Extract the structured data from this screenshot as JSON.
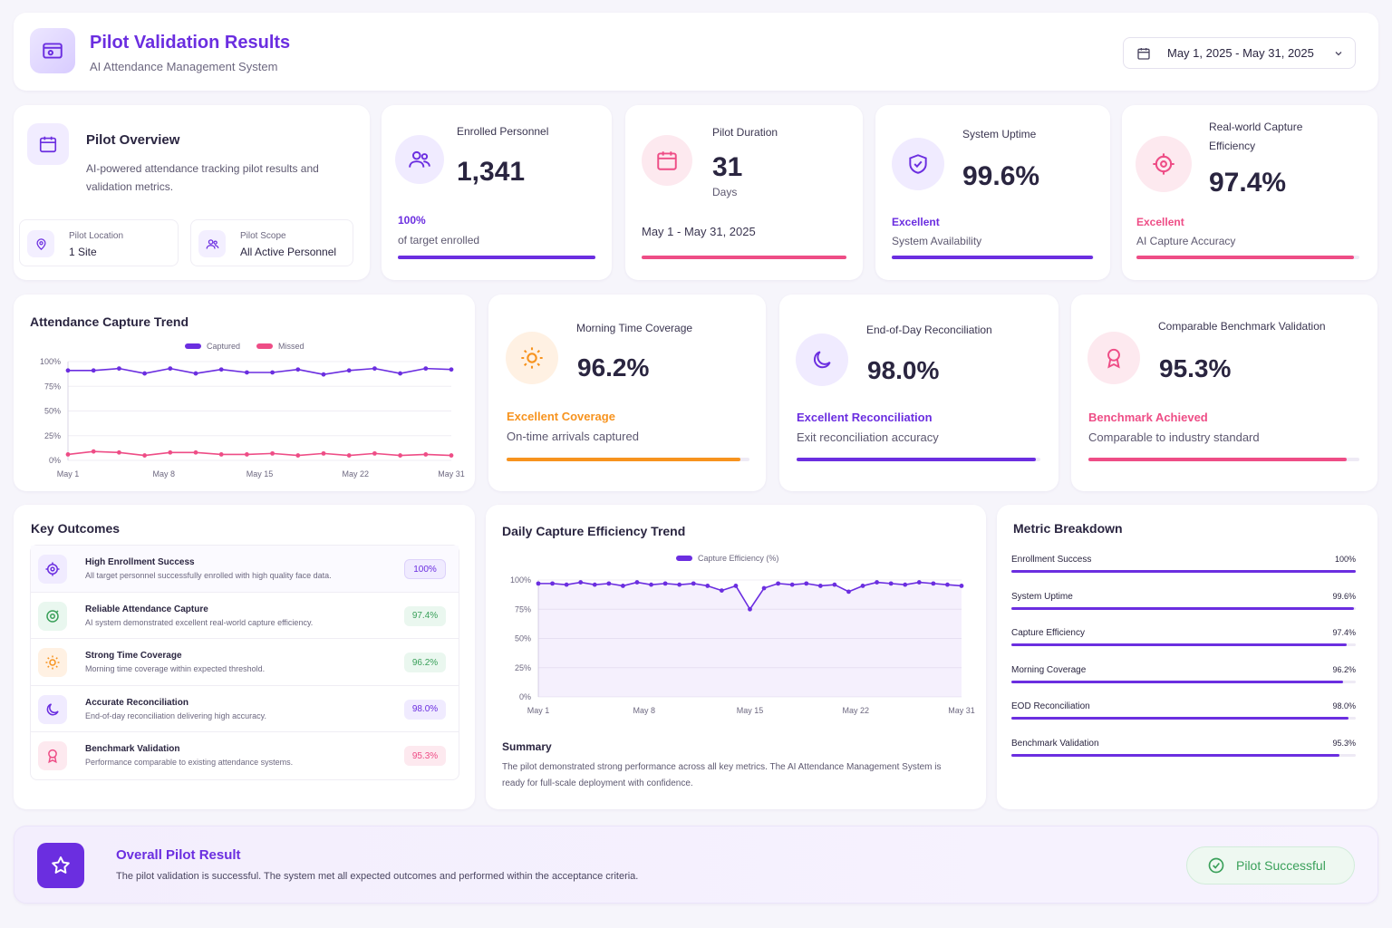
{
  "header": {
    "title": "Pilot Validation Results",
    "subtitle": "AI Attendance Management System",
    "date_range": "May 1, 2025 - May 31, 2025"
  },
  "overview": {
    "title": "Pilot Overview",
    "description": "AI-powered attendance tracking pilot results and validation metrics.",
    "location_label": "Pilot Location",
    "location_value": "1 Site",
    "scope_label": "Pilot Scope",
    "scope_value": "All Active Personnel"
  },
  "kpis": {
    "enrolled": {
      "label": "Enrolled Personnel",
      "value": "1,341",
      "note": "100%",
      "sub": "of target enrolled",
      "progress": 1.0
    },
    "duration": {
      "label": "Pilot Duration",
      "value": "31",
      "unit": "Days",
      "sub": "May 1 - May 31, 2025",
      "progress": 1.0
    },
    "uptime": {
      "label": "System Uptime",
      "value": "99.6%",
      "note": "Excellent",
      "sub": "System Availability",
      "progress": 0.996
    },
    "capture": {
      "label_line1": "Real-world Capture",
      "label_line2": "Efficiency",
      "value": "97.4%",
      "note": "Excellent",
      "sub": "AI Capture Accuracy",
      "progress": 0.974
    }
  },
  "mid_kpis": {
    "morning": {
      "label": "Morning Time Coverage",
      "value": "96.2%",
      "note": "Excellent Coverage",
      "sub": "On-time arrivals captured",
      "progress": 0.962
    },
    "eod": {
      "label": "End-of-Day Reconciliation",
      "value": "98.0%",
      "note": "Excellent Reconciliation",
      "sub": "Exit reconciliation accuracy",
      "progress": 0.98
    },
    "benchmark": {
      "label": "Comparable Benchmark Validation",
      "value": "95.3%",
      "note": "Benchmark Achieved",
      "sub": "Comparable to industry standard",
      "progress": 0.953
    }
  },
  "colors": {
    "purple": "#6b2ee0",
    "pink": "#ee4d86",
    "orange": "#f7931e",
    "green": "#3aa05a"
  },
  "attendance_chart": {
    "title": "Attendance Capture Trend",
    "legend_captured": "Captured",
    "legend_missed": "Missed",
    "y_ticks": [
      "100%",
      "75%",
      "50%",
      "25%",
      "0%"
    ],
    "x_ticks": [
      "May 1",
      "May 8",
      "May 15",
      "May 22",
      "May 31"
    ]
  },
  "efficiency_chart": {
    "title": "Daily Capture Efficiency Trend",
    "legend": "Capture Efficiency (%)",
    "y_ticks": [
      "100%",
      "75%",
      "50%",
      "25%",
      "0%"
    ],
    "x_ticks": [
      "May 1",
      "May 8",
      "May 15",
      "May 22",
      "May 31"
    ]
  },
  "chart_data": [
    {
      "type": "line",
      "x_range": [
        1,
        31
      ],
      "ylim": [
        0,
        100
      ],
      "series": [
        {
          "name": "Captured",
          "color": "#6b2ee0",
          "x": [
            1,
            3,
            5,
            7,
            9,
            11,
            13,
            15,
            17,
            19,
            21,
            23,
            25,
            27,
            29,
            31
          ],
          "values": [
            91,
            91,
            93,
            88,
            93,
            88,
            92,
            89,
            89,
            92,
            87,
            91,
            93,
            88,
            93,
            92
          ]
        },
        {
          "name": "Missed",
          "color": "#ee4d86",
          "x": [
            1,
            3,
            5,
            7,
            9,
            11,
            13,
            15,
            17,
            19,
            21,
            23,
            25,
            27,
            29,
            31
          ],
          "values": [
            6,
            9,
            8,
            5,
            8,
            8,
            6,
            6,
            7,
            5,
            7,
            5,
            7,
            5,
            6,
            5
          ]
        }
      ]
    },
    {
      "type": "area",
      "x_range": [
        1,
        31
      ],
      "ylim": [
        0,
        100
      ],
      "series": [
        {
          "name": "Capture Efficiency (%)",
          "color": "#6b2ee0",
          "x": [
            1,
            2,
            3,
            4,
            5,
            6,
            7,
            8,
            9,
            10,
            11,
            12,
            13,
            14,
            15,
            16,
            17,
            18,
            19,
            20,
            21,
            22,
            23,
            24,
            25,
            26,
            27,
            28,
            29,
            30,
            31
          ],
          "values": [
            97,
            97,
            96,
            98,
            96,
            97,
            95,
            98,
            96,
            97,
            96,
            97,
            95,
            91,
            95,
            75,
            93,
            97,
            96,
            97,
            95,
            96,
            90,
            95,
            98,
            97,
            96,
            98,
            97,
            96,
            95
          ]
        }
      ]
    }
  ],
  "key_outcomes": {
    "title": "Key Outcomes",
    "items": [
      {
        "title": "High Enrollment Success",
        "desc": "All target personnel successfully enrolled with high quality face data.",
        "badge": "100%"
      },
      {
        "title": "Reliable Attendance Capture",
        "desc": "AI system demonstrated excellent real-world capture efficiency.",
        "badge": "97.4%"
      },
      {
        "title": "Strong Time Coverage",
        "desc": "Morning time coverage within expected threshold.",
        "badge": "96.2%"
      },
      {
        "title": "Accurate Reconciliation",
        "desc": "End-of-day reconciliation delivering high accuracy.",
        "badge": "98.0%"
      },
      {
        "title": "Benchmark Validation",
        "desc": "Performance comparable to existing attendance systems.",
        "badge": "95.3%"
      }
    ]
  },
  "summary": {
    "title": "Summary",
    "text": "The pilot demonstrated  strong performance across all key metrics. The AI Attendance Management System is ready for full-scale deployment with confidence."
  },
  "metric_breakdown": {
    "title": "Metric Breakdown",
    "items": [
      {
        "name": "Enrollment Success",
        "value": "100%",
        "fraction": 1.0
      },
      {
        "name": "System Uptime",
        "value": "99.6%",
        "fraction": 0.996
      },
      {
        "name": "Capture Efficiency",
        "value": "97.4%",
        "fraction": 0.974
      },
      {
        "name": "Morning Coverage",
        "value": "96.2%",
        "fraction": 0.962
      },
      {
        "name": "EOD Reconciliation",
        "value": "98.0%",
        "fraction": 0.98
      },
      {
        "name": "Benchmark Validation",
        "value": "95.3%",
        "fraction": 0.953
      }
    ]
  },
  "footer": {
    "title": "Overall Pilot Result",
    "desc": "The pilot validation is successful. The system met all expected outcomes and performed within the acceptance criteria.",
    "status": "Pilot Successful"
  }
}
